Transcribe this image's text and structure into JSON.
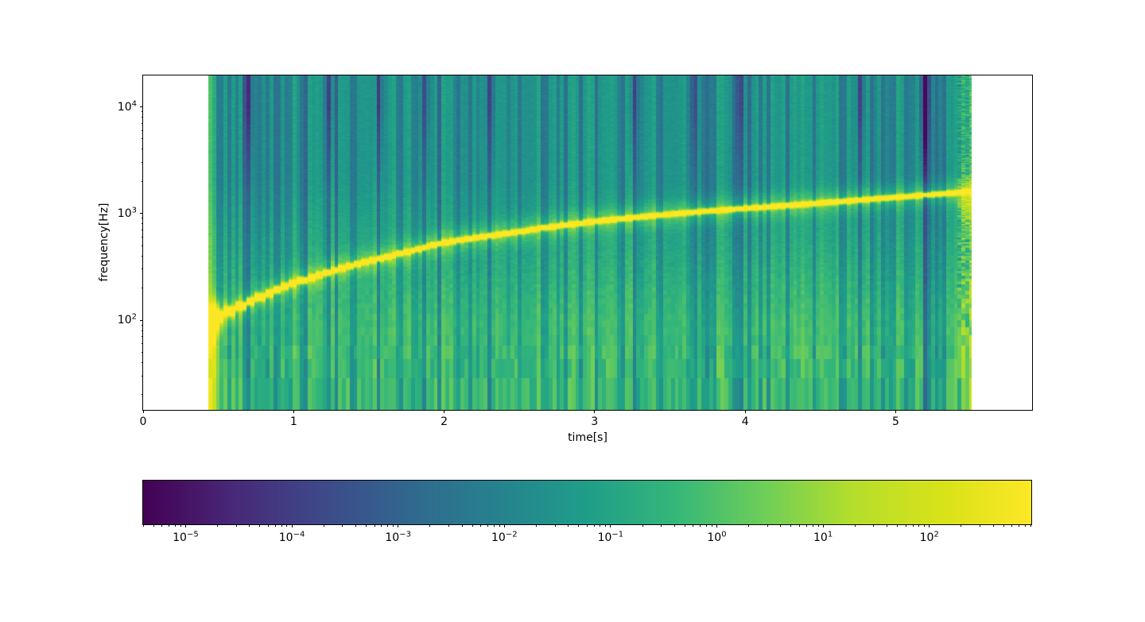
{
  "figure": {
    "background": "#ffffff",
    "title": ""
  },
  "chart_data": {
    "type": "heatmap",
    "subtype": "spectrogram",
    "title": "",
    "xlabel": "time[s]",
    "ylabel": "frequency[Hz]",
    "grid": false,
    "legend": null,
    "x_axis": {
      "scale": "linear",
      "min": 0,
      "max": 5.906,
      "major_ticks": [
        0,
        1,
        2,
        3,
        4,
        5
      ]
    },
    "y_axis": {
      "scale": "log",
      "min": 14.4,
      "max": 19700,
      "major_tick_exponents": [
        2,
        3,
        4
      ]
    },
    "signal": {
      "description": "rising chirp tone over broadband background",
      "t_start": 0.433,
      "t_end": 5.505,
      "time_bin_s": 0.0254,
      "freq_bin_hz": 14.4,
      "onset": {
        "t": 0.47,
        "f_hz": 100
      },
      "chirp_ridge_t_hz": [
        [
          0.45,
          95
        ],
        [
          0.6,
          130
        ],
        [
          0.8,
          170
        ],
        [
          1.0,
          225
        ],
        [
          1.25,
          290
        ],
        [
          1.5,
          360
        ],
        [
          1.75,
          440
        ],
        [
          2.0,
          540
        ],
        [
          2.25,
          610
        ],
        [
          2.5,
          680
        ],
        [
          2.75,
          770
        ],
        [
          3.0,
          850
        ],
        [
          3.25,
          920
        ],
        [
          3.5,
          990
        ],
        [
          3.75,
          1060
        ],
        [
          4.0,
          1125
        ],
        [
          4.25,
          1190
        ],
        [
          4.5,
          1265
        ],
        [
          4.75,
          1345
        ],
        [
          5.0,
          1430
        ],
        [
          5.25,
          1520
        ],
        [
          5.5,
          1620
        ],
        [
          5.505,
          1660
        ]
      ],
      "dark_columns_t_strength": [
        [
          0.7,
          -0.2
        ],
        [
          0.88,
          -0.13
        ],
        [
          1.05,
          -0.11
        ],
        [
          1.24,
          -0.17
        ],
        [
          1.4,
          -0.11
        ],
        [
          1.57,
          -0.18
        ],
        [
          1.72,
          -0.11
        ],
        [
          1.88,
          -0.16
        ],
        [
          2.1,
          -0.12
        ],
        [
          2.31,
          -0.17
        ],
        [
          2.5,
          -0.11
        ],
        [
          2.65,
          -0.12
        ],
        [
          2.82,
          -0.14
        ],
        [
          3.0,
          -0.13
        ],
        [
          3.26,
          -0.17
        ],
        [
          3.44,
          -0.12
        ],
        [
          3.66,
          -0.15
        ],
        [
          3.81,
          -0.11
        ],
        [
          3.97,
          -0.16
        ],
        [
          4.16,
          -0.12
        ],
        [
          4.29,
          -0.13
        ],
        [
          4.45,
          -0.12
        ],
        [
          4.63,
          -0.12
        ],
        [
          4.77,
          -0.17
        ],
        [
          4.92,
          -0.12
        ],
        [
          5.07,
          -0.11
        ],
        [
          5.19,
          -0.3
        ],
        [
          5.32,
          -0.14
        ]
      ],
      "noise_seed": 42
    },
    "colorbar": {
      "scale": "log",
      "min_exponent": -5.4,
      "max_exponent": 2.96,
      "major_tick_exponents": [
        -5,
        -4,
        -3,
        -2,
        -1,
        0,
        1,
        2
      ],
      "orientation": "horizontal"
    },
    "colormap": {
      "name": "viridis",
      "stops": [
        "#440154",
        "#482878",
        "#3e4989",
        "#31688e",
        "#26828e",
        "#1f9e89",
        "#35b779",
        "#6ece58",
        "#b5de2b",
        "#d8e219",
        "#fde725"
      ]
    }
  }
}
